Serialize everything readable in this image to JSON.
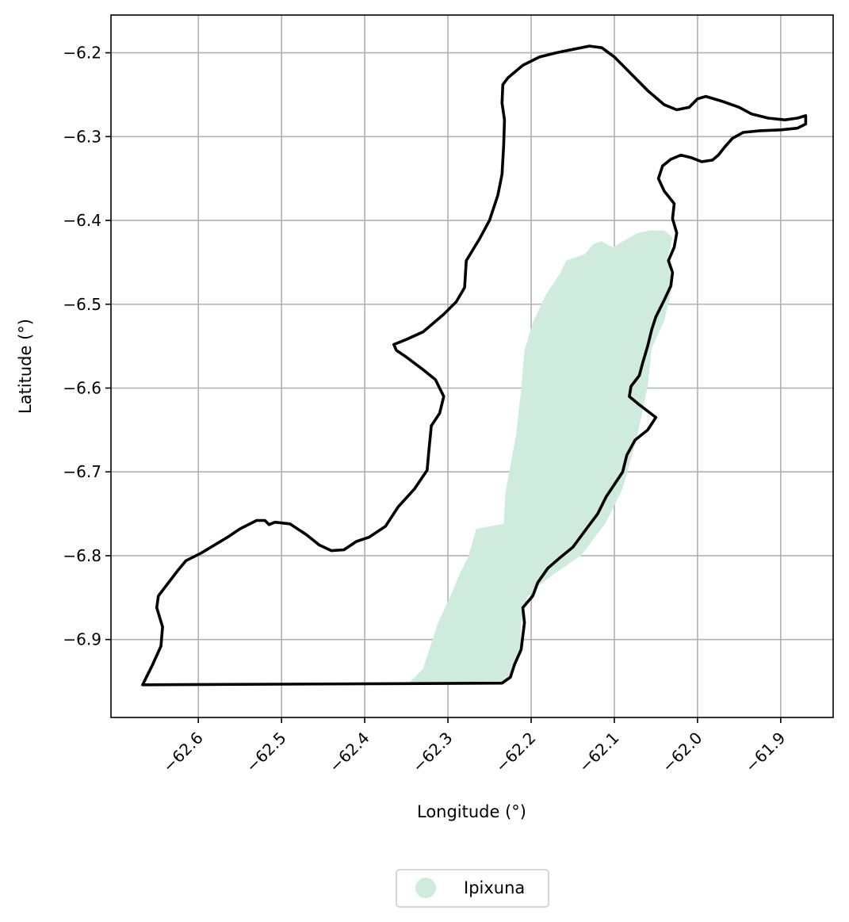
{
  "chart_data": {
    "type": "map",
    "xlabel": "Longitude (°)",
    "ylabel": "Latitude (°)",
    "xlim": [
      -62.705,
      -61.837
    ],
    "ylim": [
      -6.993,
      -6.155
    ],
    "grid": true,
    "x_ticks": [
      {
        "value": -62.6,
        "label": "−62.6"
      },
      {
        "value": -62.5,
        "label": "−62.5"
      },
      {
        "value": -62.4,
        "label": "−62.4"
      },
      {
        "value": -62.3,
        "label": "−62.3"
      },
      {
        "value": -62.2,
        "label": "−62.2"
      },
      {
        "value": -62.1,
        "label": "−62.1"
      },
      {
        "value": -62.0,
        "label": "−62.0"
      },
      {
        "value": -61.9,
        "label": "−61.9"
      }
    ],
    "y_ticks": [
      {
        "value": -6.2,
        "label": "−6.2"
      },
      {
        "value": -6.3,
        "label": "−6.3"
      },
      {
        "value": -6.4,
        "label": "−6.4"
      },
      {
        "value": -6.5,
        "label": "−6.5"
      },
      {
        "value": -6.6,
        "label": "−6.6"
      },
      {
        "value": -6.7,
        "label": "−6.7"
      },
      {
        "value": -6.8,
        "label": "−6.8"
      },
      {
        "value": -6.9,
        "label": "−6.9"
      }
    ],
    "legend": {
      "placement": "bottom-center",
      "entries": [
        {
          "label": "Ipixuna",
          "color": "#cfebdd"
        }
      ]
    },
    "layers": [
      {
        "id": "ipixuna-area",
        "kind": "filled-polygon",
        "color": "#cfebdd",
        "coords": [
          [
            -62.348,
            -6.953
          ],
          [
            -62.33,
            -6.935
          ],
          [
            -62.312,
            -6.88
          ],
          [
            -62.297,
            -6.848
          ],
          [
            -62.285,
            -6.82
          ],
          [
            -62.275,
            -6.8
          ],
          [
            -62.266,
            -6.768
          ],
          [
            -62.233,
            -6.762
          ],
          [
            -62.231,
            -6.725
          ],
          [
            -62.218,
            -6.655
          ],
          [
            -62.212,
            -6.602
          ],
          [
            -62.208,
            -6.555
          ],
          [
            -62.198,
            -6.522
          ],
          [
            -62.182,
            -6.488
          ],
          [
            -62.165,
            -6.463
          ],
          [
            -62.158,
            -6.448
          ],
          [
            -62.135,
            -6.44
          ],
          [
            -62.125,
            -6.428
          ],
          [
            -62.115,
            -6.425
          ],
          [
            -62.102,
            -6.432
          ],
          [
            -62.09,
            -6.425
          ],
          [
            -62.072,
            -6.415
          ],
          [
            -62.058,
            -6.412
          ],
          [
            -62.04,
            -6.412
          ],
          [
            -62.03,
            -6.42
          ],
          [
            -62.036,
            -6.446
          ],
          [
            -62.03,
            -6.478
          ],
          [
            -62.04,
            -6.52
          ],
          [
            -62.055,
            -6.552
          ],
          [
            -62.06,
            -6.598
          ],
          [
            -62.073,
            -6.66
          ],
          [
            -62.09,
            -6.72
          ],
          [
            -62.11,
            -6.76
          ],
          [
            -62.14,
            -6.8
          ],
          [
            -62.17,
            -6.82
          ],
          [
            -62.19,
            -6.835
          ],
          [
            -62.205,
            -6.85
          ],
          [
            -62.212,
            -6.88
          ],
          [
            -62.213,
            -6.915
          ],
          [
            -62.225,
            -6.945
          ],
          [
            -62.235,
            -6.952
          ],
          [
            -62.348,
            -6.953
          ]
        ]
      },
      {
        "id": "municipality-boundary",
        "kind": "outline",
        "color": "#000000",
        "coords": [
          [
            -62.667,
            -6.954
          ],
          [
            -62.655,
            -6.93
          ],
          [
            -62.645,
            -6.908
          ],
          [
            -62.643,
            -6.885
          ],
          [
            -62.65,
            -6.862
          ],
          [
            -62.648,
            -6.848
          ],
          [
            -62.638,
            -6.835
          ],
          [
            -62.625,
            -6.818
          ],
          [
            -62.615,
            -6.806
          ],
          [
            -62.597,
            -6.797
          ],
          [
            -62.565,
            -6.778
          ],
          [
            -62.55,
            -6.768
          ],
          [
            -62.53,
            -6.758
          ],
          [
            -62.52,
            -6.758
          ],
          [
            -62.515,
            -6.763
          ],
          [
            -62.508,
            -6.76
          ],
          [
            -62.49,
            -6.762
          ],
          [
            -62.47,
            -6.775
          ],
          [
            -62.455,
            -6.787
          ],
          [
            -62.44,
            -6.794
          ],
          [
            -62.425,
            -6.793
          ],
          [
            -62.41,
            -6.783
          ],
          [
            -62.395,
            -6.778
          ],
          [
            -62.375,
            -6.765
          ],
          [
            -62.36,
            -6.742
          ],
          [
            -62.34,
            -6.72
          ],
          [
            -62.325,
            -6.698
          ],
          [
            -62.323,
            -6.676
          ],
          [
            -62.32,
            -6.645
          ],
          [
            -62.31,
            -6.63
          ],
          [
            -62.305,
            -6.61
          ],
          [
            -62.315,
            -6.59
          ],
          [
            -62.33,
            -6.578
          ],
          [
            -62.35,
            -6.563
          ],
          [
            -62.362,
            -6.555
          ],
          [
            -62.365,
            -6.548
          ],
          [
            -62.35,
            -6.542
          ],
          [
            -62.33,
            -6.533
          ],
          [
            -62.305,
            -6.512
          ],
          [
            -62.29,
            -6.497
          ],
          [
            -62.28,
            -6.48
          ],
          [
            -62.278,
            -6.448
          ],
          [
            -62.262,
            -6.422
          ],
          [
            -62.25,
            -6.4
          ],
          [
            -62.24,
            -6.37
          ],
          [
            -62.235,
            -6.345
          ],
          [
            -62.233,
            -6.31
          ],
          [
            -62.232,
            -6.28
          ],
          [
            -62.235,
            -6.26
          ],
          [
            -62.234,
            -6.238
          ],
          [
            -62.228,
            -6.23
          ],
          [
            -62.21,
            -6.215
          ],
          [
            -62.19,
            -6.205
          ],
          [
            -62.17,
            -6.2
          ],
          [
            -62.15,
            -6.196
          ],
          [
            -62.13,
            -6.192
          ],
          [
            -62.115,
            -6.194
          ],
          [
            -62.1,
            -6.205
          ],
          [
            -62.08,
            -6.225
          ],
          [
            -62.06,
            -6.245
          ],
          [
            -62.04,
            -6.262
          ],
          [
            -62.025,
            -6.268
          ],
          [
            -62.01,
            -6.265
          ],
          [
            -62.0,
            -6.255
          ],
          [
            -61.99,
            -6.252
          ],
          [
            -61.97,
            -6.258
          ],
          [
            -61.95,
            -6.265
          ],
          [
            -61.935,
            -6.273
          ],
          [
            -61.915,
            -6.278
          ],
          [
            -61.895,
            -6.28
          ],
          [
            -61.88,
            -6.278
          ],
          [
            -61.87,
            -6.275
          ],
          [
            -61.87,
            -6.285
          ],
          [
            -61.88,
            -6.29
          ],
          [
            -61.9,
            -6.292
          ],
          [
            -61.925,
            -6.293
          ],
          [
            -61.945,
            -6.295
          ],
          [
            -61.958,
            -6.302
          ],
          [
            -61.967,
            -6.312
          ],
          [
            -61.975,
            -6.322
          ],
          [
            -61.982,
            -6.328
          ],
          [
            -61.995,
            -6.33
          ],
          [
            -62.008,
            -6.325
          ],
          [
            -62.02,
            -6.322
          ],
          [
            -62.032,
            -6.327
          ],
          [
            -62.042,
            -6.335
          ],
          [
            -62.047,
            -6.35
          ],
          [
            -62.04,
            -6.365
          ],
          [
            -62.028,
            -6.38
          ],
          [
            -62.03,
            -6.398
          ],
          [
            -62.025,
            -6.415
          ],
          [
            -62.028,
            -6.432
          ],
          [
            -62.035,
            -6.448
          ],
          [
            -62.03,
            -6.462
          ],
          [
            -62.032,
            -6.478
          ],
          [
            -62.04,
            -6.495
          ],
          [
            -62.05,
            -6.515
          ],
          [
            -62.055,
            -6.53
          ],
          [
            -62.06,
            -6.55
          ],
          [
            -62.066,
            -6.57
          ],
          [
            -62.07,
            -6.585
          ],
          [
            -62.08,
            -6.598
          ],
          [
            -62.082,
            -6.61
          ],
          [
            -62.07,
            -6.62
          ],
          [
            -62.05,
            -6.635
          ],
          [
            -62.06,
            -6.65
          ],
          [
            -62.075,
            -6.662
          ],
          [
            -62.085,
            -6.68
          ],
          [
            -62.09,
            -6.7
          ],
          [
            -62.1,
            -6.715
          ],
          [
            -62.11,
            -6.73
          ],
          [
            -62.12,
            -6.75
          ],
          [
            -62.135,
            -6.77
          ],
          [
            -62.15,
            -6.79
          ],
          [
            -62.165,
            -6.802
          ],
          [
            -62.18,
            -6.815
          ],
          [
            -62.192,
            -6.832
          ],
          [
            -62.198,
            -6.848
          ],
          [
            -62.21,
            -6.862
          ],
          [
            -62.208,
            -6.88
          ],
          [
            -62.212,
            -6.912
          ],
          [
            -62.22,
            -6.93
          ],
          [
            -62.225,
            -6.945
          ],
          [
            -62.235,
            -6.952
          ],
          [
            -62.667,
            -6.954
          ]
        ]
      }
    ]
  }
}
